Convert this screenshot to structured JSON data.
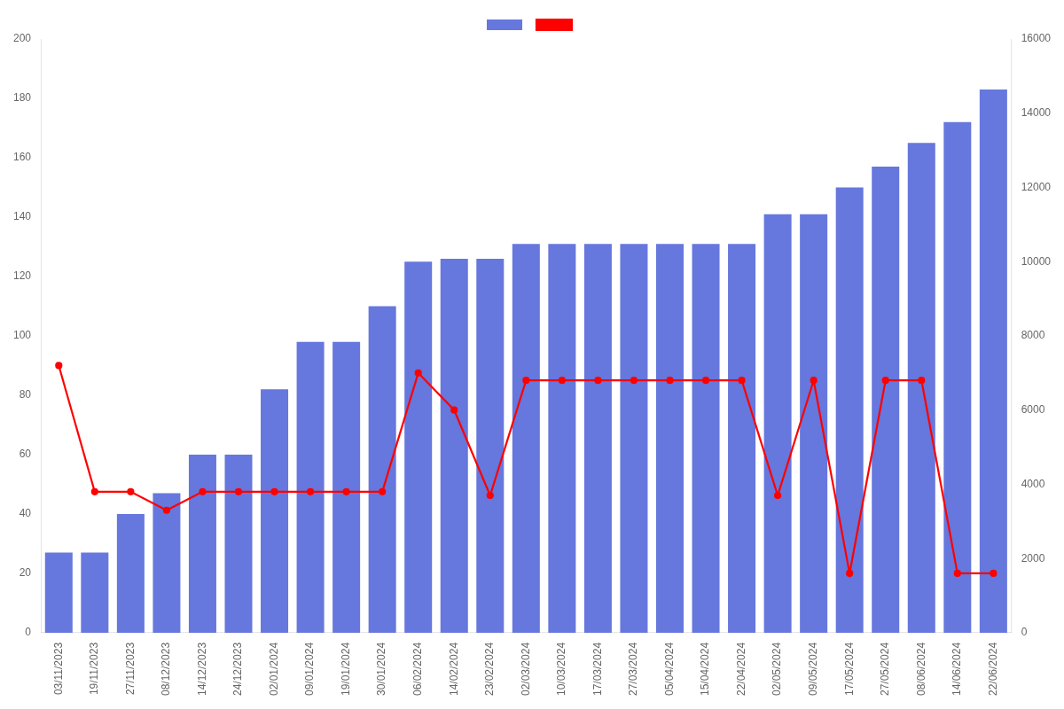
{
  "chart_data": {
    "type": "bar",
    "categories": [
      "03/11/2023",
      "19/11/2023",
      "27/11/2023",
      "08/12/2023",
      "14/12/2023",
      "24/12/2023",
      "02/01/2024",
      "09/01/2024",
      "19/01/2024",
      "30/01/2024",
      "06/02/2024",
      "14/02/2024",
      "23/02/2024",
      "02/03/2024",
      "10/03/2024",
      "17/03/2024",
      "27/03/2024",
      "05/04/2024",
      "15/04/2024",
      "22/04/2024",
      "02/05/2024",
      "09/05/2024",
      "17/05/2024",
      "27/05/2024",
      "08/06/2024",
      "14/06/2024",
      "22/06/2024"
    ],
    "series": [
      {
        "type": "bar",
        "color": "#6677dd",
        "values": [
          27,
          27,
          40,
          47,
          60,
          60,
          82,
          98,
          98,
          110,
          125,
          126,
          126,
          131,
          131,
          131,
          131,
          131,
          131,
          131,
          141,
          141,
          150,
          157,
          165,
          172,
          183
        ]
      },
      {
        "type": "line",
        "axis": "y2",
        "color": "#ff0000",
        "marker": "circle",
        "values": [
          7200,
          3800,
          3800,
          3300,
          3800,
          3800,
          3800,
          3800,
          3800,
          3800,
          7000,
          6000,
          3700,
          6800,
          6800,
          6800,
          6800,
          6800,
          6800,
          6800,
          3700,
          6800,
          1600,
          6800,
          6800,
          1600,
          1600
        ]
      }
    ],
    "ylim": [
      0,
      200
    ],
    "yticks": [
      0,
      20,
      40,
      60,
      80,
      100,
      120,
      140,
      160,
      180,
      200
    ],
    "y2lim": [
      0,
      16000
    ],
    "y2ticks": [
      0,
      2000,
      4000,
      6000,
      8000,
      10000,
      12000,
      14000,
      16000
    ],
    "grid": false,
    "legend": "top"
  }
}
